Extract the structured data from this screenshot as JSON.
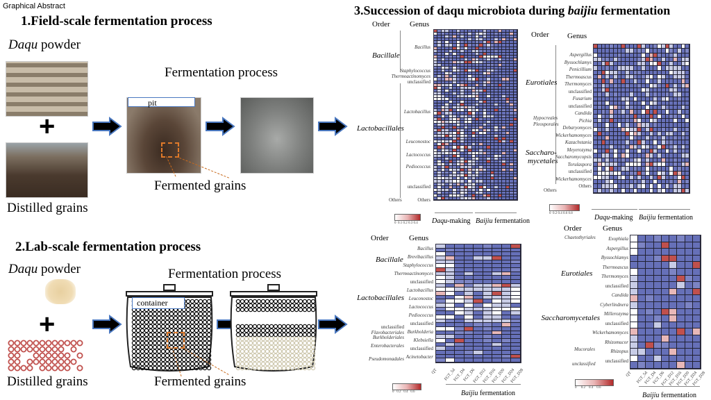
{
  "header": {
    "graphical_abstract": "Graphical Abstract"
  },
  "section1": {
    "title": "1.Field-scale fermentation process",
    "daqu_italic": "Daqu",
    "daqu_rest": " powder",
    "plus": "+",
    "distilled": "Distilled grains",
    "fermentation": "Fermentation process",
    "pit_label": "pit",
    "fermented": "Fermented grains"
  },
  "section2": {
    "title": "2.Lab-scale fermentation process",
    "daqu_italic": "Daqu",
    "daqu_rest": " powder",
    "plus": "+",
    "distilled": "Distilled grains",
    "fermentation": "Fermentation process",
    "container_label": "container",
    "fermented": "Fermented grains"
  },
  "section3": {
    "title_main": "3.Succession of daqu microbiota during ",
    "title_italic": "baijiu",
    "title_end": " fermentation"
  },
  "heatmaps": {
    "order_header": "Order",
    "genus_header": "Genus",
    "bact_field": {
      "orders": [
        "Bacillale",
        "Lactobacillales",
        "Others"
      ],
      "genera": [
        "Bacillus",
        "Staphylococcus",
        "Thermoactinomyces",
        "unclassified",
        "Lactobacillus",
        "Leuconostoc",
        "Lactococcus",
        "Pediococcus",
        "unclassified",
        "Others"
      ],
      "group1": "Daqu",
      "group1_rest": "-making",
      "group2": "Baijiu",
      "group2_rest": " fermentation",
      "legend": [
        "0",
        "0.1",
        "0.2",
        "0.3",
        "0.4"
      ]
    },
    "fungi_field": {
      "orders": [
        "Eurotiales",
        "Hypocreales",
        "Pleosporales",
        "Saccharo-",
        "mycetales",
        "Others"
      ],
      "genera": [
        "Aspergillus",
        "Byssochlamys",
        "Penicillium",
        "Thermoascus",
        "Thermomyces",
        "unclassified",
        "Fusarium",
        "unclassified",
        "Candida",
        "Pichia",
        "Debaryomyces",
        "Wickerhamomyces",
        "Kazachstania",
        "Meyerozyma",
        "Saccharomycopsis",
        "Torulaspora",
        "unclassified",
        "Wickerhamomyces",
        "Others"
      ],
      "group1": "Daqu",
      "group1_rest": "-making",
      "group2": "Baijiu",
      "group2_rest": " fermentation",
      "legend": [
        "0",
        "0.2",
        "0.4",
        "0.6",
        "0.8"
      ]
    },
    "bact_lab": {
      "orders": [
        "Bacillale",
        "Lactobacillales",
        "unclassified",
        "Flavobacteriales",
        "Burkholderiales",
        "Enterobacterales",
        "Pseudomonadales"
      ],
      "genera": [
        "Bacillus",
        "Brevibacillus",
        "Staphylococcus",
        "Thermoactinomyces",
        "unclassified",
        "Lactobacillus",
        "Leuconostoc",
        "Lactococcus",
        "Pediococcus",
        "unclassified",
        "Burkholderia",
        "Klebsiella",
        "unclassified",
        "Acinetobacter"
      ],
      "samples": [
        "QT",
        "FGT_5d",
        "FGT_D4",
        "FGT_D6",
        "FGT_D12",
        "FGT_D16",
        "FGT_D20",
        "FGT_D24",
        "FGT_D28"
      ],
      "group2": "Baijiu",
      "group2_rest": " fermentation",
      "legend": [
        "0",
        "0.2",
        "0.4",
        "0.6"
      ]
    },
    "fungi_lab": {
      "orders": [
        "Chaetothyriales",
        "Eurotiales",
        "Saccharomycetales",
        "Mucorales",
        "unclassified"
      ],
      "genera": [
        "Exophiala",
        "Aspergillus",
        "Byssochlamys",
        "Thermoascus",
        "Thermomyces",
        "unclassified",
        "Candida",
        "Cyberlindnera",
        "Millerozyma",
        "unclassified",
        "Wickerhamomyces",
        "Rhizomucor",
        "Rhizopus",
        "unclassified"
      ],
      "samples": [
        "QT",
        "FGT_5d",
        "FGT_D4",
        "FGT_D6",
        "FGT_D12",
        "FGT_D16",
        "FGT_D20",
        "FGT_D24",
        "FGT_D28"
      ],
      "group2": "Baijiu",
      "group2_rest": " fermentation",
      "legend": [
        "0",
        "0.2",
        "0.4",
        "0.6"
      ]
    }
  },
  "colors": {
    "arrow_fill": "#000000",
    "arrow_outline": "#4a78c0",
    "heat_low": "#6670b8",
    "heat_mid": "#ffffff",
    "heat_high": "#b22a2a",
    "dash": "#c86a1c"
  }
}
